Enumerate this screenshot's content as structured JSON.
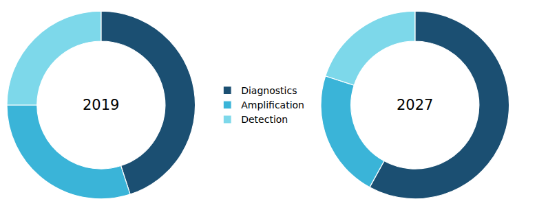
{
  "chart_data": [
    {
      "type": "pie",
      "annotations": [
        "2019"
      ],
      "categories": [
        "Diagnostics",
        "Amplification",
        "Detection"
      ],
      "values": [
        45,
        30,
        25
      ],
      "colors": [
        "#1b4f72",
        "#3ab4d8",
        "#7dd8ea"
      ],
      "legend": "center"
    },
    {
      "type": "pie",
      "annotations": [
        "2027"
      ],
      "categories": [
        "Diagnostics",
        "Amplification",
        "Detection"
      ],
      "values": [
        58,
        22,
        20
      ],
      "colors": [
        "#1b4f72",
        "#3ab4d8",
        "#7dd8ea"
      ],
      "legend": "center"
    }
  ]
}
